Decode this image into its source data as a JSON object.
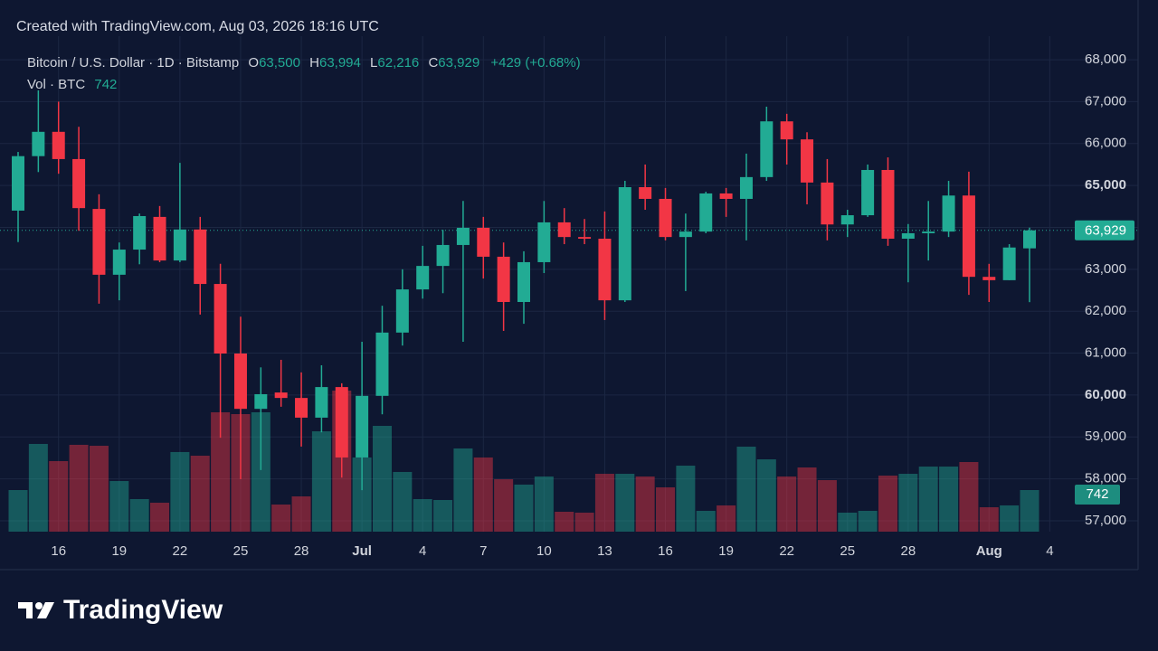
{
  "chart_data": {
    "type": "candlestick",
    "subtitle": "Created with TradingView.com, Aug 03, 2026 18:16 UTC",
    "title": "Bitcoin / U.S. Dollar · 1D · Bitstamp",
    "header_letters": {
      "open": "O",
      "high": "H",
      "low": "L",
      "close": "C"
    },
    "last_labels": {
      "open": "63,500",
      "high": "63,994",
      "low": "62,216",
      "close": "63,929",
      "change": "+429 (+0.68%)"
    },
    "categories": [
      null,
      null,
      "16",
      null,
      null,
      "19",
      null,
      null,
      "22",
      null,
      null,
      "25",
      null,
      null,
      "28",
      null,
      null,
      "Jul",
      null,
      null,
      "4",
      null,
      null,
      "7",
      null,
      null,
      "10",
      null,
      null,
      "13",
      null,
      null,
      "16",
      null,
      null,
      "19",
      null,
      null,
      "22",
      null,
      null,
      "25",
      null,
      null,
      "28",
      null,
      null,
      null,
      "Aug",
      null,
      null,
      "4"
    ],
    "open": [
      64400,
      65700,
      66280,
      65630,
      64440,
      62870,
      63470,
      64250,
      63210,
      63950,
      62650,
      60990,
      59670,
      60060,
      59930,
      59460,
      60190,
      58510,
      59980,
      61490,
      62520,
      63080,
      63580,
      63990,
      63300,
      62220,
      63170,
      64120,
      63770,
      63730,
      62260,
      64960,
      64680,
      63770,
      63900,
      64810,
      64680,
      65200,
      66530,
      66100,
      65070,
      64070,
      64290,
      65370,
      63730,
      63860,
      63900,
      64760,
      62820,
      62740,
      63500,
      null
    ],
    "high": [
      65800,
      67270,
      67000,
      66400,
      64790,
      63640,
      64330,
      64510,
      65540,
      64250,
      63130,
      61870,
      60660,
      60840,
      60540,
      60710,
      60280,
      61270,
      62130,
      63000,
      63560,
      63940,
      64630,
      64250,
      63640,
      63430,
      64630,
      64460,
      64200,
      64380,
      65110,
      65500,
      64940,
      64330,
      64850,
      64940,
      65760,
      66880,
      66710,
      66270,
      65630,
      64420,
      65500,
      65670,
      64080,
      64630,
      65110,
      65330,
      63130,
      63600,
      63994,
      null
    ],
    "low": [
      63650,
      65320,
      65280,
      63920,
      62180,
      62260,
      63120,
      63170,
      63170,
      61920,
      58980,
      57990,
      58210,
      59720,
      58770,
      59110,
      58030,
      57730,
      59540,
      61180,
      62300,
      62430,
      61270,
      62780,
      61530,
      61700,
      62910,
      63600,
      63600,
      61790,
      62220,
      64420,
      63690,
      62480,
      63860,
      64250,
      63690,
      65110,
      65500,
      64550,
      63690,
      63770,
      64250,
      63560,
      62690,
      63210,
      63770,
      62390,
      62220,
      62740,
      62216,
      null
    ],
    "close": [
      65700,
      66280,
      65630,
      64460,
      62870,
      63470,
      64270,
      63210,
      63950,
      62650,
      60990,
      59670,
      60020,
      59930,
      59460,
      60190,
      58510,
      59980,
      61490,
      62520,
      63080,
      63580,
      63990,
      63300,
      62220,
      63170,
      64120,
      63770,
      63730,
      62260,
      64960,
      64680,
      63770,
      63900,
      64810,
      64680,
      65200,
      66530,
      66100,
      65070,
      64070,
      64290,
      65370,
      63730,
      63860,
      63900,
      64760,
      62820,
      62740,
      63520,
      63929,
      null
    ],
    "volume": {
      "name": "Vol · BTC",
      "values": [
        742,
        1565,
        1258,
        1549,
        1532,
        903,
        581,
        516,
        1420,
        1355,
        2129,
        2097,
        2129,
        484,
        629,
        1790,
        2516,
        1323,
        1887,
        1065,
        581,
        565,
        1484,
        1323,
        935,
        839,
        984,
        355,
        339,
        1032,
        1032,
        984,
        790,
        1177,
        371,
        468,
        1516,
        1290,
        984,
        1145,
        919,
        339,
        371,
        1000,
        1032,
        1161,
        1161,
        1242,
        435,
        468,
        742,
        null
      ]
    },
    "volume_ylim": [
      0,
      3000
    ],
    "up_color": "#22ab94",
    "down_color": "#f23645",
    "ylim": [
      56740,
      68390
    ],
    "yticks": [
      {
        "value": 57000,
        "label": "57,000"
      },
      {
        "value": 58000,
        "label": "58,000"
      },
      {
        "value": 59000,
        "label": "59,000"
      },
      {
        "value": 60000,
        "label": "60,000"
      },
      {
        "value": 61000,
        "label": "61,000"
      },
      {
        "value": 62000,
        "label": "62,000"
      },
      {
        "value": 63000,
        "label": "63,000"
      },
      {
        "value": 64000,
        "label": "64,000"
      },
      {
        "value": 65000,
        "label": "65,000"
      },
      {
        "value": 66000,
        "label": "66,000"
      },
      {
        "value": 67000,
        "label": "67,000"
      },
      {
        "value": 68000,
        "label": "68,000"
      }
    ],
    "grid": true,
    "brand": "TradingView"
  }
}
